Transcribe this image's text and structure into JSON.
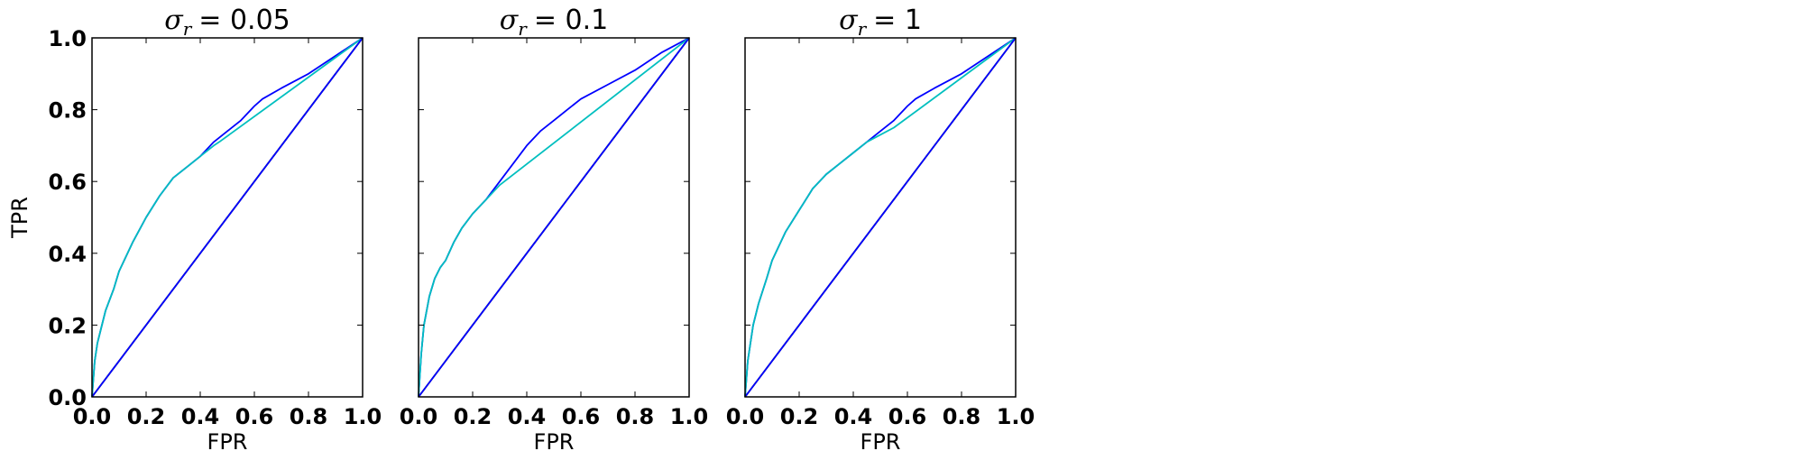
{
  "chart_data": [
    {
      "type": "line",
      "title_symbol": "σ",
      "title_subscript": "r",
      "title_value": "= 0.05",
      "xlabel": "FPR",
      "ylabel": "TPR",
      "xlim": [
        0,
        1
      ],
      "ylim": [
        0,
        1
      ],
      "xticks": [
        "0.0",
        "0.2",
        "0.4",
        "0.6",
        "0.8",
        "1.0"
      ],
      "yticks": [
        "0.0",
        "0.2",
        "0.4",
        "0.6",
        "0.8",
        "1.0"
      ],
      "grid": false,
      "series": [
        {
          "color": "#0000ff",
          "x": [
            0,
            0.01,
            0.02,
            0.03,
            0.05,
            0.08,
            0.1,
            0.15,
            0.2,
            0.25,
            0.3,
            0.35,
            0.4,
            0.45,
            0.5,
            0.55,
            0.6,
            0.63,
            0.7,
            0.8,
            0.9,
            1.0
          ],
          "y": [
            0,
            0.1,
            0.15,
            0.18,
            0.24,
            0.3,
            0.35,
            0.43,
            0.5,
            0.56,
            0.61,
            0.64,
            0.67,
            0.71,
            0.74,
            0.77,
            0.81,
            0.83,
            0.86,
            0.9,
            0.95,
            1.0
          ]
        },
        {
          "color": "#00bfbf",
          "x": [
            0,
            0.01,
            0.02,
            0.03,
            0.05,
            0.08,
            0.1,
            0.15,
            0.2,
            0.25,
            0.3,
            0.35,
            0.4,
            0.45,
            0.47,
            1.0
          ],
          "y": [
            0,
            0.1,
            0.15,
            0.18,
            0.24,
            0.3,
            0.35,
            0.43,
            0.5,
            0.56,
            0.61,
            0.64,
            0.67,
            0.7,
            0.71,
            1.0
          ]
        },
        {
          "color": "#000000",
          "x": [
            0,
            1
          ],
          "y": [
            0,
            1
          ]
        },
        {
          "color": "#0000ff",
          "x": [
            0,
            1
          ],
          "y": [
            0,
            1
          ]
        }
      ]
    },
    {
      "type": "line",
      "title_symbol": "σ",
      "title_subscript": "r",
      "title_value": "= 0.1",
      "xlabel": "FPR",
      "ylabel": "",
      "xlim": [
        0,
        1
      ],
      "ylim": [
        0,
        1
      ],
      "xticks": [
        "0.0",
        "0.2",
        "0.4",
        "0.6",
        "0.8",
        "1.0"
      ],
      "yticks": [],
      "grid": false,
      "series": [
        {
          "color": "#0000ff",
          "x": [
            0,
            0.01,
            0.02,
            0.04,
            0.06,
            0.08,
            0.1,
            0.13,
            0.16,
            0.2,
            0.25,
            0.3,
            0.35,
            0.4,
            0.45,
            0.5,
            0.55,
            0.6,
            0.7,
            0.8,
            0.9,
            1.0
          ],
          "y": [
            0,
            0.12,
            0.2,
            0.28,
            0.33,
            0.36,
            0.38,
            0.43,
            0.47,
            0.51,
            0.55,
            0.6,
            0.65,
            0.7,
            0.74,
            0.77,
            0.8,
            0.83,
            0.87,
            0.91,
            0.96,
            1.0
          ]
        },
        {
          "color": "#00bfbf",
          "x": [
            0,
            0.01,
            0.02,
            0.04,
            0.06,
            0.08,
            0.1,
            0.13,
            0.16,
            0.2,
            0.25,
            0.3,
            1.0
          ],
          "y": [
            0,
            0.12,
            0.2,
            0.28,
            0.33,
            0.36,
            0.38,
            0.43,
            0.47,
            0.51,
            0.55,
            0.59,
            1.0
          ]
        },
        {
          "color": "#000000",
          "x": [
            0,
            1
          ],
          "y": [
            0,
            1
          ]
        },
        {
          "color": "#0000ff",
          "x": [
            0,
            1
          ],
          "y": [
            0,
            1
          ]
        }
      ]
    },
    {
      "type": "line",
      "title_symbol": "σ",
      "title_subscript": "r",
      "title_value": "= 1",
      "xlabel": "FPR",
      "ylabel": "",
      "xlim": [
        0,
        1
      ],
      "ylim": [
        0,
        1
      ],
      "xticks": [
        "0.0",
        "0.2",
        "0.4",
        "0.6",
        "0.8",
        "1.0"
      ],
      "yticks": [],
      "grid": false,
      "series": [
        {
          "color": "#0000ff",
          "x": [
            0,
            0.01,
            0.02,
            0.03,
            0.05,
            0.08,
            0.1,
            0.15,
            0.2,
            0.25,
            0.3,
            0.35,
            0.4,
            0.45,
            0.5,
            0.55,
            0.6,
            0.63,
            0.7,
            0.8,
            0.9,
            1.0
          ],
          "y": [
            0,
            0.1,
            0.15,
            0.2,
            0.26,
            0.33,
            0.38,
            0.46,
            0.52,
            0.58,
            0.62,
            0.65,
            0.68,
            0.71,
            0.74,
            0.77,
            0.81,
            0.83,
            0.86,
            0.9,
            0.95,
            1.0
          ]
        },
        {
          "color": "#00bfbf",
          "x": [
            0,
            0.01,
            0.02,
            0.03,
            0.05,
            0.08,
            0.1,
            0.15,
            0.2,
            0.25,
            0.3,
            0.35,
            0.4,
            0.45,
            0.5,
            0.55,
            1.0
          ],
          "y": [
            0,
            0.1,
            0.15,
            0.2,
            0.26,
            0.33,
            0.38,
            0.46,
            0.52,
            0.58,
            0.62,
            0.65,
            0.68,
            0.71,
            0.73,
            0.75,
            1.0
          ]
        },
        {
          "color": "#000000",
          "x": [
            0,
            1
          ],
          "y": [
            0,
            1
          ]
        },
        {
          "color": "#0000ff",
          "x": [
            0,
            1
          ],
          "y": [
            0,
            1
          ]
        }
      ]
    }
  ]
}
